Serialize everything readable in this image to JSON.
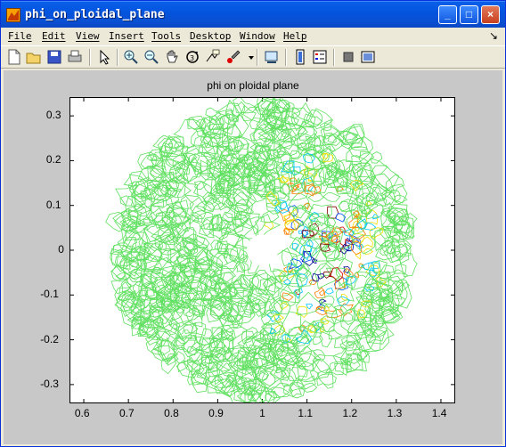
{
  "window": {
    "title": "phi_on_ploidal_plane",
    "buttons": {
      "minimize": "_",
      "maximize": "□",
      "close": "×"
    }
  },
  "menu": {
    "items": [
      {
        "label": "File"
      },
      {
        "label": "Edit"
      },
      {
        "label": "View"
      },
      {
        "label": "Insert"
      },
      {
        "label": "Tools"
      },
      {
        "label": "Desktop"
      },
      {
        "label": "Window"
      },
      {
        "label": "Help"
      }
    ],
    "dock_arrow": "↘"
  },
  "toolbar": {
    "icons": [
      "new-figure-icon",
      "open-file-icon",
      "save-icon",
      "print-icon",
      "edit-plot-arrow-icon",
      "zoom-in-icon",
      "zoom-out-icon",
      "pan-hand-icon",
      "rotate-3d-icon",
      "data-cursor-icon",
      "brush-icon",
      "brush-dropdown-icon",
      "link-plot-icon",
      "insert-colorbar-icon",
      "insert-legend-icon",
      "hide-plot-tools-icon",
      "show-plot-tools-icon"
    ]
  },
  "chart_data": {
    "type": "contour",
    "title": "phi on ploidal plane",
    "xlabel": "",
    "ylabel": "",
    "xlim": [
      0.57,
      1.43
    ],
    "ylim": [
      -0.34,
      0.34
    ],
    "xticks": [
      "0.6",
      "0.7",
      "0.8",
      "0.9",
      "1",
      "1.1",
      "1.2",
      "1.3",
      "1.4"
    ],
    "yticks": [
      "0.3",
      "0.2",
      "0.1",
      "0",
      "-0.1",
      "-0.2",
      "-0.3"
    ],
    "xtick_values": [
      0.6,
      0.7,
      0.8,
      0.9,
      1.0,
      1.1,
      1.2,
      1.3,
      1.4
    ],
    "ytick_values": [
      0.3,
      0.2,
      0.1,
      0.0,
      -0.1,
      -0.2,
      -0.3
    ],
    "domain": {
      "type": "annulus",
      "center": [
        1.0,
        0.0
      ],
      "inner_radius": 0.035,
      "outer_radius": 0.33
    },
    "level_colors": [
      "#00008f",
      "#0050ff",
      "#00c8ff",
      "#60e060",
      "#f0e000",
      "#ff8000",
      "#d00000",
      "#800000"
    ]
  }
}
